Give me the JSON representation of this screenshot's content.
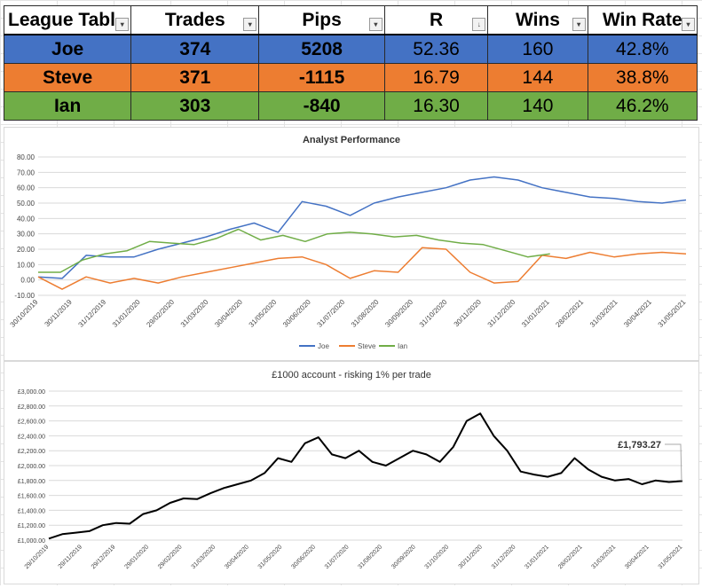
{
  "league": {
    "columns": [
      "League Tabl",
      "Trades",
      "Pips",
      "R",
      "Wins",
      "Win Rate"
    ],
    "rows": [
      {
        "name": "Joe",
        "trades": "374",
        "pips": "5208",
        "r": "52.36",
        "wins": "160",
        "win_rate": "42.8%"
      },
      {
        "name": "Steve",
        "trades": "371",
        "pips": "-1115",
        "r": "16.79",
        "wins": "144",
        "win_rate": "38.8%"
      },
      {
        "name": "Ian",
        "trades": "303",
        "pips": "-840",
        "r": "16.30",
        "wins": "140",
        "win_rate": "46.2%"
      }
    ],
    "row_colors": [
      "#4472c4",
      "#ed7d31",
      "#70ad47"
    ]
  },
  "chart_data": [
    {
      "type": "line",
      "title": "Analyst Performance",
      "ylim": [
        -10,
        80
      ],
      "yticks": [
        "-10.00",
        "0.00",
        "10.00",
        "20.00",
        "30.00",
        "40.00",
        "50.00",
        "60.00",
        "70.00",
        "80.00"
      ],
      "ytick_values": [
        -10,
        0,
        10,
        20,
        30,
        40,
        50,
        60,
        70,
        80
      ],
      "xticks": [
        "30/10/2019",
        "30/11/2019",
        "31/12/2019",
        "31/01/2020",
        "29/02/2020",
        "31/03/2020",
        "30/04/2020",
        "31/05/2020",
        "30/06/2020",
        "31/07/2020",
        "31/08/2020",
        "30/09/2020",
        "31/10/2020",
        "30/11/2020",
        "31/12/2020",
        "31/01/2021",
        "28/02/2021",
        "31/03/2021",
        "30/04/2021",
        "31/05/2021"
      ],
      "legend_position": "bottom",
      "series": [
        {
          "name": "Joe",
          "color": "#4472c4",
          "values": [
            2,
            1,
            16,
            15,
            15,
            20,
            24,
            28,
            33,
            37,
            31,
            51,
            48,
            42,
            50,
            54,
            57,
            60,
            65,
            67,
            65,
            60,
            57,
            54,
            53,
            51,
            50,
            52
          ]
        },
        {
          "name": "Steve",
          "color": "#ed7d31",
          "values": [
            2,
            -6,
            2,
            -2,
            1,
            -2,
            2,
            5,
            8,
            11,
            14,
            15,
            10,
            1,
            6,
            5,
            21,
            20,
            5,
            -2,
            -1,
            16,
            14,
            18,
            15,
            17,
            18,
            17
          ]
        },
        {
          "name": "Ian",
          "color": "#70ad47",
          "values": [
            5,
            5,
            13,
            17,
            19,
            25,
            24,
            23,
            27,
            33,
            26,
            29,
            25,
            30,
            31,
            30,
            28,
            29,
            26,
            24,
            23,
            19,
            15,
            17
          ]
        }
      ]
    },
    {
      "type": "line",
      "title": "£1000 account - risking 1% per trade",
      "ylim": [
        1000,
        3000
      ],
      "yticks": [
        "£1,000.00",
        "£1,200.00",
        "£1,400.00",
        "£1,600.00",
        "£1,800.00",
        "£2,000.00",
        "£2,200.00",
        "£2,400.00",
        "£2,600.00",
        "£2,800.00",
        "£3,000.00"
      ],
      "ytick_values": [
        1000,
        1200,
        1400,
        1600,
        1800,
        2000,
        2200,
        2400,
        2600,
        2800,
        3000
      ],
      "xticks": [
        "29/10/2019",
        "29/11/2019",
        "29/12/2019",
        "29/01/2020",
        "29/02/2020",
        "31/03/2020",
        "30/04/2020",
        "31/05/2020",
        "30/06/2020",
        "31/07/2020",
        "31/08/2020",
        "30/09/2020",
        "31/10/2020",
        "30/11/2020",
        "31/12/2020",
        "31/01/2021",
        "28/02/2021",
        "31/03/2021",
        "30/04/2021",
        "31/05/2021"
      ],
      "annotation": "£1,793.27",
      "series": [
        {
          "color": "#000000",
          "values": [
            1020,
            1080,
            1100,
            1120,
            1200,
            1230,
            1220,
            1350,
            1400,
            1500,
            1560,
            1550,
            1630,
            1700,
            1750,
            1800,
            1900,
            2100,
            2050,
            2300,
            2380,
            2150,
            2100,
            2200,
            2050,
            2000,
            2100,
            2200,
            2150,
            2050,
            2250,
            2600,
            2700,
            2400,
            2200,
            1920,
            1880,
            1850,
            1900,
            2100,
            1950,
            1850,
            1800,
            1820,
            1750,
            1800,
            1780,
            1793.27
          ]
        }
      ]
    }
  ]
}
